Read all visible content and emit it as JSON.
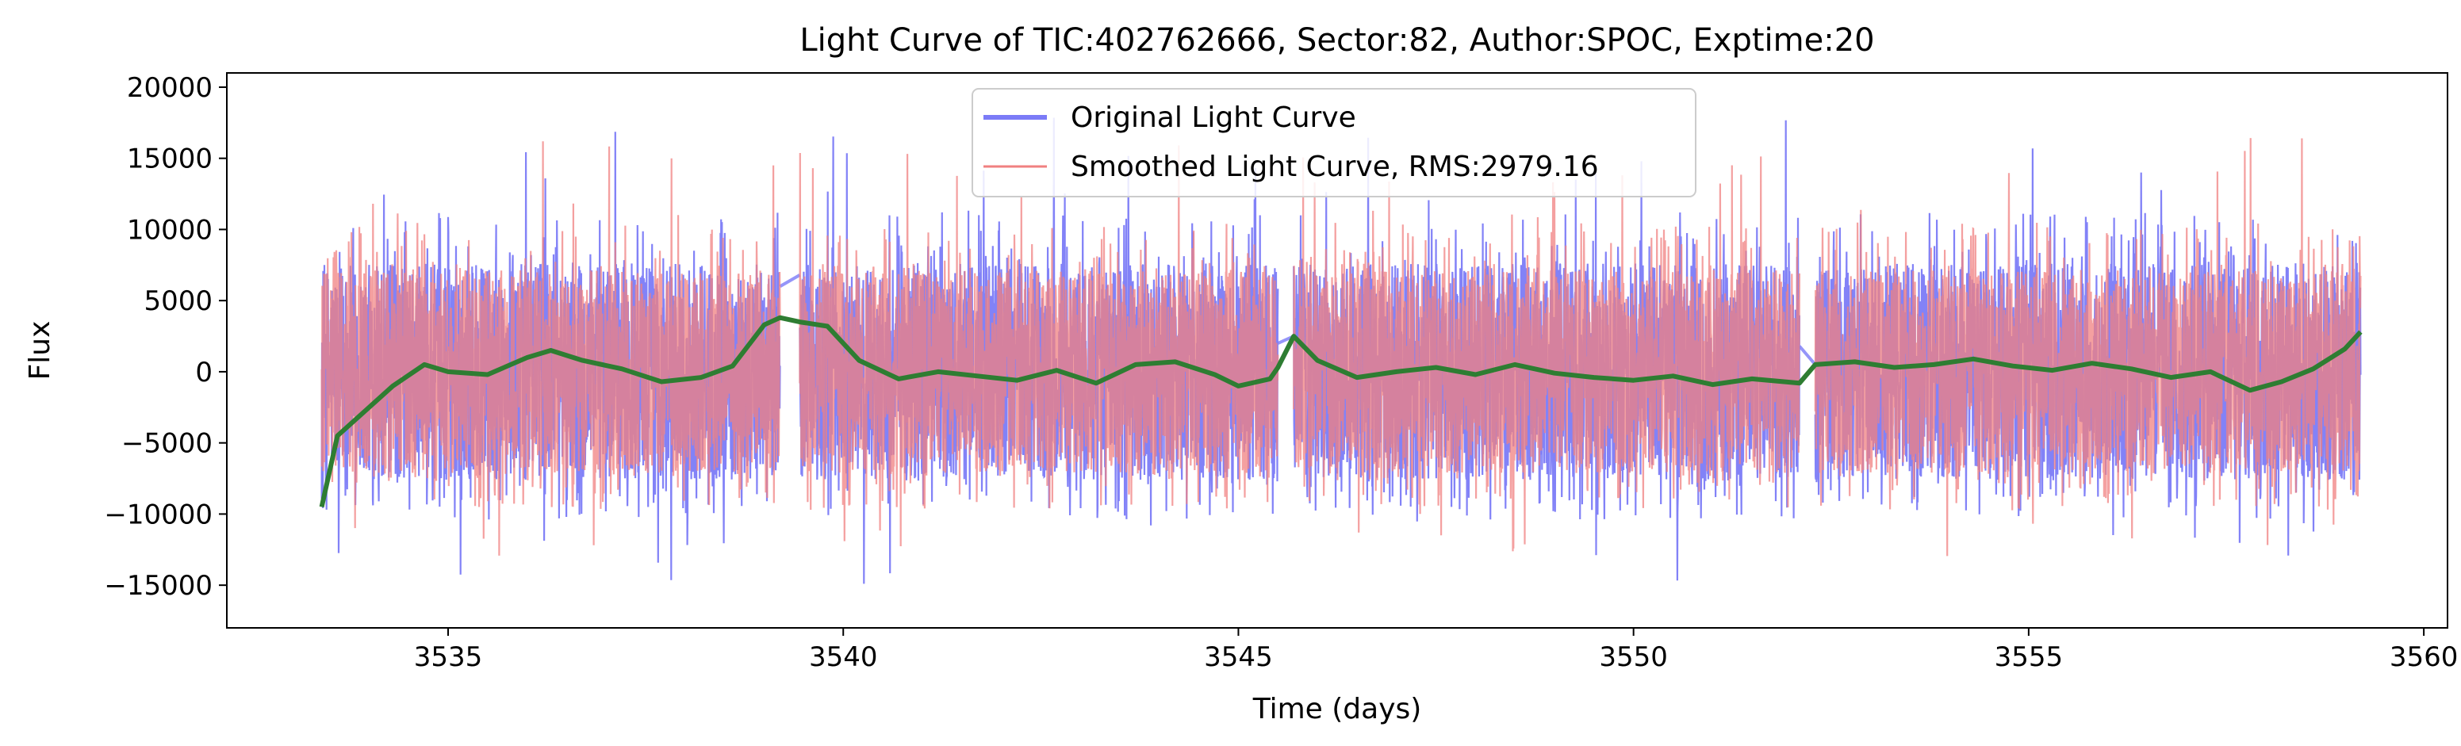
{
  "chart_data": {
    "type": "line",
    "title": "Light Curve of TIC:402762666, Sector:82, Author:SPOC, Exptime:20",
    "xlabel": "Time (days)",
    "ylabel": "Flux",
    "xlim": [
      3532.2,
      3560.3
    ],
    "ylim": [
      -18000,
      21000
    ],
    "x_ticks": [
      3535,
      3540,
      3545,
      3550,
      3555,
      3560
    ],
    "x_tick_labels": [
      "3535",
      "3540",
      "3545",
      "3550",
      "3555",
      "3560"
    ],
    "y_ticks": [
      -15000,
      -10000,
      -5000,
      0,
      5000,
      10000,
      15000,
      20000
    ],
    "y_tick_labels": [
      "−15000",
      "−10000",
      "−5000",
      "0",
      "5000",
      "10000",
      "15000",
      "20000"
    ],
    "grid": false,
    "legend_position": "top-center",
    "segments": [
      {
        "start": 3533.4,
        "end": 3539.2,
        "offset": [
          -9500,
          3800
        ]
      },
      {
        "start": 3539.45,
        "end": 3545.5,
        "offset": [
          3500,
          0
        ]
      },
      {
        "start": 3545.7,
        "end": 3552.1,
        "offset": [
          2500,
          -800
        ]
      },
      {
        "start": 3552.3,
        "end": 3559.2,
        "offset": [
          500,
          2800
        ]
      }
    ],
    "series": [
      {
        "name": "Original Light Curve",
        "color": "#7b7bf7",
        "style": "noisy",
        "typical_range": [
          -8000,
          8000
        ],
        "extreme_range": [
          -16000,
          19000
        ]
      },
      {
        "name": "Smoothed Light Curve, RMS:2979.16",
        "color": "#f08080",
        "style": "noisy",
        "typical_range": [
          -7500,
          7500
        ],
        "extreme_range": [
          -14000,
          17500
        ]
      },
      {
        "name": "",
        "color": "#2e7d32",
        "style": "trend",
        "points": [
          [
            3533.4,
            -9500
          ],
          [
            3533.6,
            -4500
          ],
          [
            3534.0,
            -2500
          ],
          [
            3534.3,
            -1000
          ],
          [
            3534.7,
            500
          ],
          [
            3535.0,
            0
          ],
          [
            3535.5,
            -200
          ],
          [
            3536.0,
            1000
          ],
          [
            3536.3,
            1500
          ],
          [
            3536.7,
            800
          ],
          [
            3537.2,
            200
          ],
          [
            3537.7,
            -700
          ],
          [
            3538.2,
            -400
          ],
          [
            3538.6,
            400
          ],
          [
            3539.0,
            3300
          ],
          [
            3539.2,
            3800
          ],
          [
            3539.45,
            3500
          ],
          [
            3539.8,
            3200
          ],
          [
            3540.2,
            800
          ],
          [
            3540.7,
            -500
          ],
          [
            3541.2,
            0
          ],
          [
            3541.7,
            -300
          ],
          [
            3542.2,
            -600
          ],
          [
            3542.7,
            100
          ],
          [
            3543.2,
            -800
          ],
          [
            3543.7,
            500
          ],
          [
            3544.2,
            700
          ],
          [
            3544.7,
            -200
          ],
          [
            3545.0,
            -1000
          ],
          [
            3545.4,
            -500
          ],
          [
            3545.5,
            300
          ],
          [
            3545.7,
            2500
          ],
          [
            3546.0,
            800
          ],
          [
            3546.5,
            -400
          ],
          [
            3547.0,
            0
          ],
          [
            3547.5,
            300
          ],
          [
            3548.0,
            -200
          ],
          [
            3548.5,
            500
          ],
          [
            3549.0,
            -100
          ],
          [
            3549.5,
            -400
          ],
          [
            3550.0,
            -600
          ],
          [
            3550.5,
            -300
          ],
          [
            3551.0,
            -900
          ],
          [
            3551.5,
            -500
          ],
          [
            3552.1,
            -800
          ],
          [
            3552.3,
            500
          ],
          [
            3552.8,
            700
          ],
          [
            3553.3,
            300
          ],
          [
            3553.8,
            500
          ],
          [
            3554.3,
            900
          ],
          [
            3554.8,
            400
          ],
          [
            3555.3,
            100
          ],
          [
            3555.8,
            600
          ],
          [
            3556.3,
            200
          ],
          [
            3556.8,
            -400
          ],
          [
            3557.3,
            0
          ],
          [
            3557.8,
            -1300
          ],
          [
            3558.2,
            -700
          ],
          [
            3558.6,
            200
          ],
          [
            3559.0,
            1600
          ],
          [
            3559.2,
            2800
          ]
        ]
      }
    ]
  }
}
